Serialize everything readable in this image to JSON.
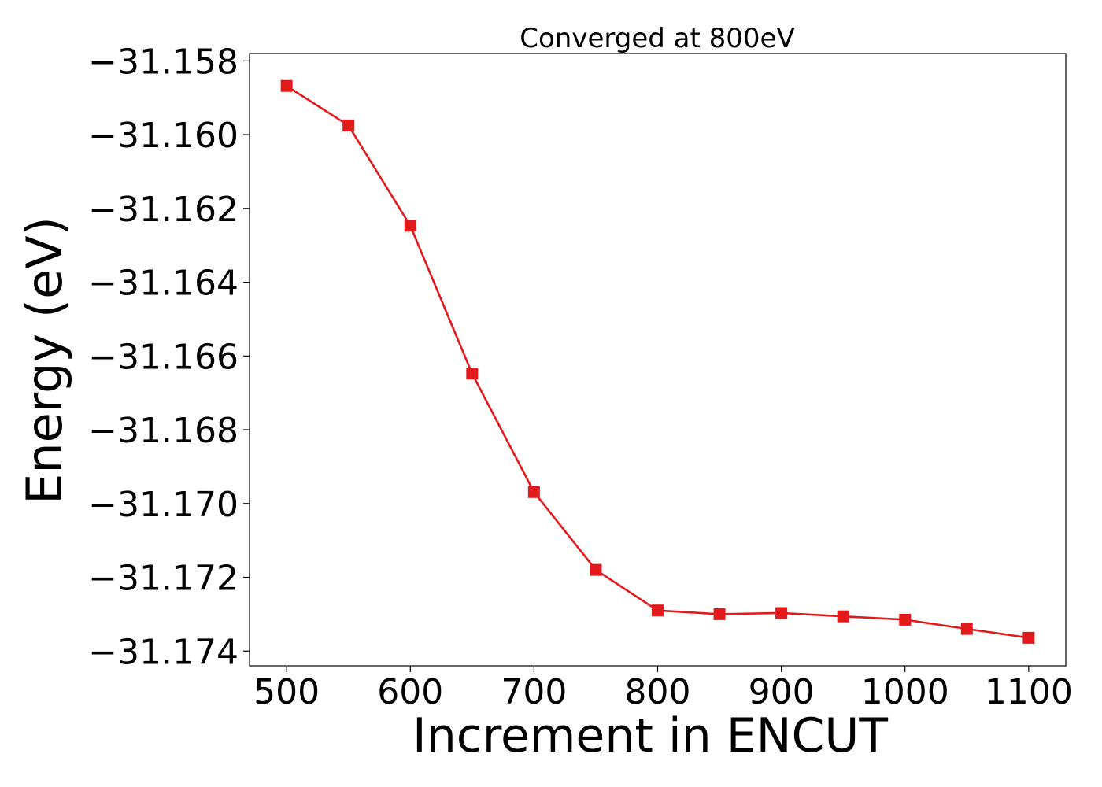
{
  "chart_data": {
    "type": "line",
    "title": "Converged at 800eV",
    "xlabel": "Increment in ENCUT",
    "ylabel": "Energy (eV)",
    "xlim": [
      470,
      1130
    ],
    "ylim": [
      -31.1744,
      -31.1578
    ],
    "x_ticks": [
      500,
      600,
      700,
      800,
      900,
      1000,
      1100
    ],
    "x_tick_labels": [
      "500",
      "600",
      "700",
      "800",
      "900",
      "1000",
      "1100"
    ],
    "y_ticks": [
      -31.158,
      -31.16,
      -31.162,
      -31.164,
      -31.166,
      -31.168,
      -31.17,
      -31.172,
      -31.174
    ],
    "y_tick_labels": [
      "−31.158",
      "−31.160",
      "−31.162",
      "−31.164",
      "−31.166",
      "−31.168",
      "−31.170",
      "−31.172",
      "−31.174"
    ],
    "grid": false,
    "legend": "none",
    "series": [
      {
        "color": "#e31a1c",
        "marker": "square",
        "x": [
          500,
          550,
          600,
          650,
          700,
          750,
          800,
          850,
          900,
          950,
          1000,
          1050,
          1100
        ],
        "y": [
          -31.15868,
          -31.15975,
          -31.16247,
          -31.16648,
          -31.16969,
          -31.1718,
          -31.1729,
          -31.173,
          -31.17297,
          -31.17306,
          -31.17315,
          -31.1734,
          -31.17364
        ]
      }
    ]
  }
}
